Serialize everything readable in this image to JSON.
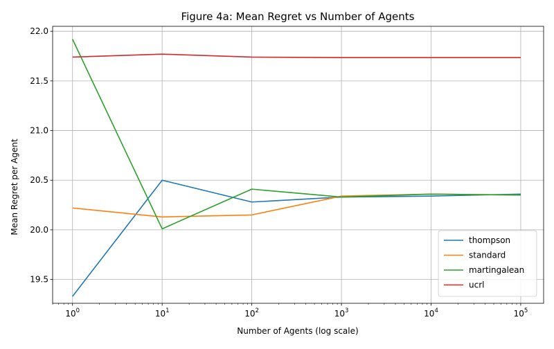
{
  "chart_data": {
    "type": "line",
    "title": "Figure 4a: Mean Regret vs Number of Agents",
    "xlabel": "Number of Agents (log scale)",
    "ylabel": "Mean Regret per Agent",
    "xscale": "log",
    "x": [
      1,
      10,
      100,
      1000,
      10000,
      100000
    ],
    "xlim": [
      0.6,
      180000
    ],
    "ylim": [
      19.26,
      22.05
    ],
    "x_ticks": [
      {
        "value": 1,
        "base": "10",
        "exp": "0"
      },
      {
        "value": 10,
        "base": "10",
        "exp": "1"
      },
      {
        "value": 100,
        "base": "10",
        "exp": "2"
      },
      {
        "value": 1000,
        "base": "10",
        "exp": "3"
      },
      {
        "value": 10000,
        "base": "10",
        "exp": "4"
      },
      {
        "value": 100000,
        "base": "10",
        "exp": "5"
      }
    ],
    "y_ticks": [
      {
        "value": 19.5,
        "label": "19.5"
      },
      {
        "value": 20.0,
        "label": "20.0"
      },
      {
        "value": 20.5,
        "label": "20.5"
      },
      {
        "value": 21.0,
        "label": "21.0"
      },
      {
        "value": 21.5,
        "label": "21.5"
      },
      {
        "value": 22.0,
        "label": "22.0"
      }
    ],
    "grid": true,
    "legend_position": "bottom-right",
    "series": [
      {
        "name": "thompson",
        "color": "#1f77b4",
        "values": [
          19.33,
          20.5,
          20.28,
          20.33,
          20.34,
          20.36
        ]
      },
      {
        "name": "standard",
        "color": "#ff7f0e",
        "values": [
          20.22,
          20.13,
          20.15,
          20.34,
          20.36,
          20.35
        ]
      },
      {
        "name": "martingalean",
        "color": "#2ca02c",
        "values": [
          21.92,
          20.01,
          20.41,
          20.33,
          20.36,
          20.35
        ]
      },
      {
        "name": "ucrl",
        "color": "#d62728",
        "values": [
          21.74,
          21.77,
          21.74,
          21.735,
          21.735,
          21.735
        ]
      }
    ]
  }
}
